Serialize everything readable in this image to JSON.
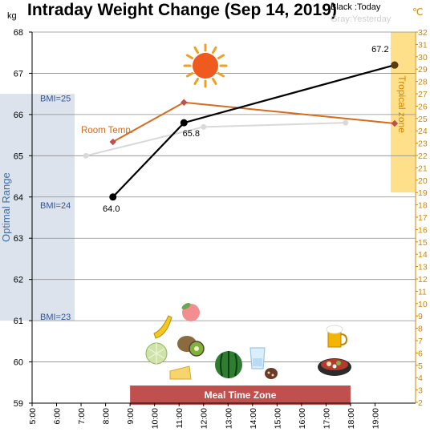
{
  "header": {
    "title": "Intraday Weight Change (Sep 14, 2019)",
    "legend_today": "Black :Today",
    "legend_yesterday": "Gray:Yesterday"
  },
  "chart_data": {
    "type": "line",
    "title": "Intraday Weight Change (Sep 14, 2019)",
    "y_unit": "kg",
    "y2_unit": "℃",
    "ylim": [
      59,
      68
    ],
    "y2lim": [
      2,
      32
    ],
    "xlim": [
      5,
      20
    ],
    "x_ticks": [
      "5:00",
      "6:00",
      "7:00",
      "8:00",
      "9:00",
      "10:00",
      "11:00",
      "12:00",
      "13:00",
      "14:00",
      "15:00",
      "16:00",
      "17:00",
      "18:00",
      "19:00"
    ],
    "y_ticks": [
      "59",
      "60",
      "61",
      "62",
      "63",
      "64",
      "65",
      "66",
      "67",
      "68"
    ],
    "y2_ticks": [
      "2",
      "3",
      "4",
      "5",
      "6",
      "7",
      "8",
      "9",
      "10",
      "11",
      "12",
      "13",
      "14",
      "15",
      "16",
      "17",
      "18",
      "19",
      "20",
      "21",
      "22",
      "23",
      "24",
      "25",
      "26",
      "27",
      "28",
      "29",
      "30",
      "31",
      "32"
    ],
    "series": [
      {
        "name": "Black :Today",
        "color": "#000000",
        "axis": "left",
        "points": [
          {
            "x": 8.3,
            "y": 64.0,
            "label": "64.0"
          },
          {
            "x": 11.2,
            "y": 65.8,
            "label": "65.8"
          },
          {
            "x": 19.8,
            "y": 67.2,
            "label": "67.2"
          }
        ]
      },
      {
        "name": "Gray:Yesterday",
        "color": "#d9d9d9",
        "axis": "left",
        "points": [
          {
            "x": 7.2,
            "y": 65.0
          },
          {
            "x": 12.0,
            "y": 65.7
          },
          {
            "x": 17.8,
            "y": 65.8
          }
        ]
      },
      {
        "name": "Room Temp.",
        "color": "#d86a1c",
        "axis": "right",
        "points": [
          {
            "x": 8.3,
            "y": 23.1
          },
          {
            "x": 11.2,
            "y": 26.3
          },
          {
            "x": 19.8,
            "y": 24.6
          }
        ]
      }
    ],
    "annotations": {
      "room_temp_label": "Room Temp.",
      "optimal_range": {
        "label": "Optimal Range",
        "ymin": 61,
        "ymax": 66.5,
        "color": "#dce3ec"
      },
      "bmi_labels": [
        {
          "text": "BMI=25",
          "y": 66.4
        },
        {
          "text": "BMI=24",
          "y": 63.8
        },
        {
          "text": "BMI=23",
          "y": 61.1
        }
      ],
      "tropical_zone": {
        "label": "Tropical zone",
        "y2min": 19,
        "y2max": 32,
        "color": "#ffe08a"
      },
      "meal_time_zone": {
        "label": "Meal Time Zone",
        "xmin": 9,
        "xmax": 18,
        "color": "#c0504d"
      }
    },
    "icons": [
      {
        "name": "sun-icon"
      },
      {
        "name": "banana-icon"
      },
      {
        "name": "peach-icon"
      },
      {
        "name": "melon-icon"
      },
      {
        "name": "kiwi-icon"
      },
      {
        "name": "cheese-icon"
      },
      {
        "name": "watermelon-icon"
      },
      {
        "name": "water-glass-icon"
      },
      {
        "name": "chocolate-icon"
      },
      {
        "name": "beer-icon"
      },
      {
        "name": "hotpot-icon"
      }
    ]
  }
}
